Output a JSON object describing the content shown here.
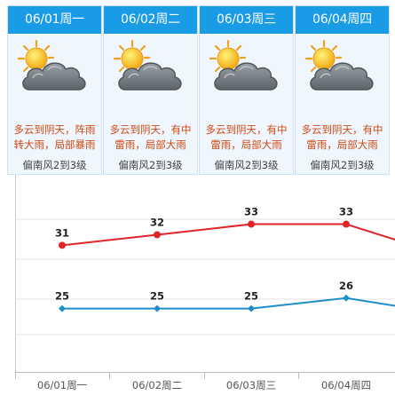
{
  "days": [
    {
      "header": "06/01周一",
      "icon": "partly-cloudy-sun-icon",
      "description": "多云到阴天，阵雨转大雨，局部暴雨",
      "wind": "偏南风2到3级"
    },
    {
      "header": "06/02周二",
      "icon": "partly-cloudy-sun-icon",
      "description": "多云到阴天，有中雷雨，局部大雨",
      "wind": "偏南风2到3级"
    },
    {
      "header": "06/03周三",
      "icon": "partly-cloudy-sun-icon",
      "description": "多云到阴天，有中雷雨，局部大雨",
      "wind": "偏南风2到3级"
    },
    {
      "header": "06/04周四",
      "icon": "partly-cloudy-sun-icon",
      "description": "多云到阴天，有中雷雨，局部大雨",
      "wind": "偏南风2到3级"
    }
  ],
  "colors": {
    "header_bg": "#1a9be6",
    "high_line": "#e0242a",
    "low_line": "#1e8ec9",
    "description_text": "#d14a12"
  },
  "chart_data": {
    "type": "line",
    "categories": [
      "06/01周一",
      "06/02周二",
      "06/03周三",
      "06/04周四"
    ],
    "series": [
      {
        "values": [
          31,
          32,
          33,
          33
        ]
      },
      {
        "values": [
          25,
          25,
          25,
          26
        ]
      }
    ],
    "ylim": [
      19,
      37
    ],
    "grid": true
  }
}
